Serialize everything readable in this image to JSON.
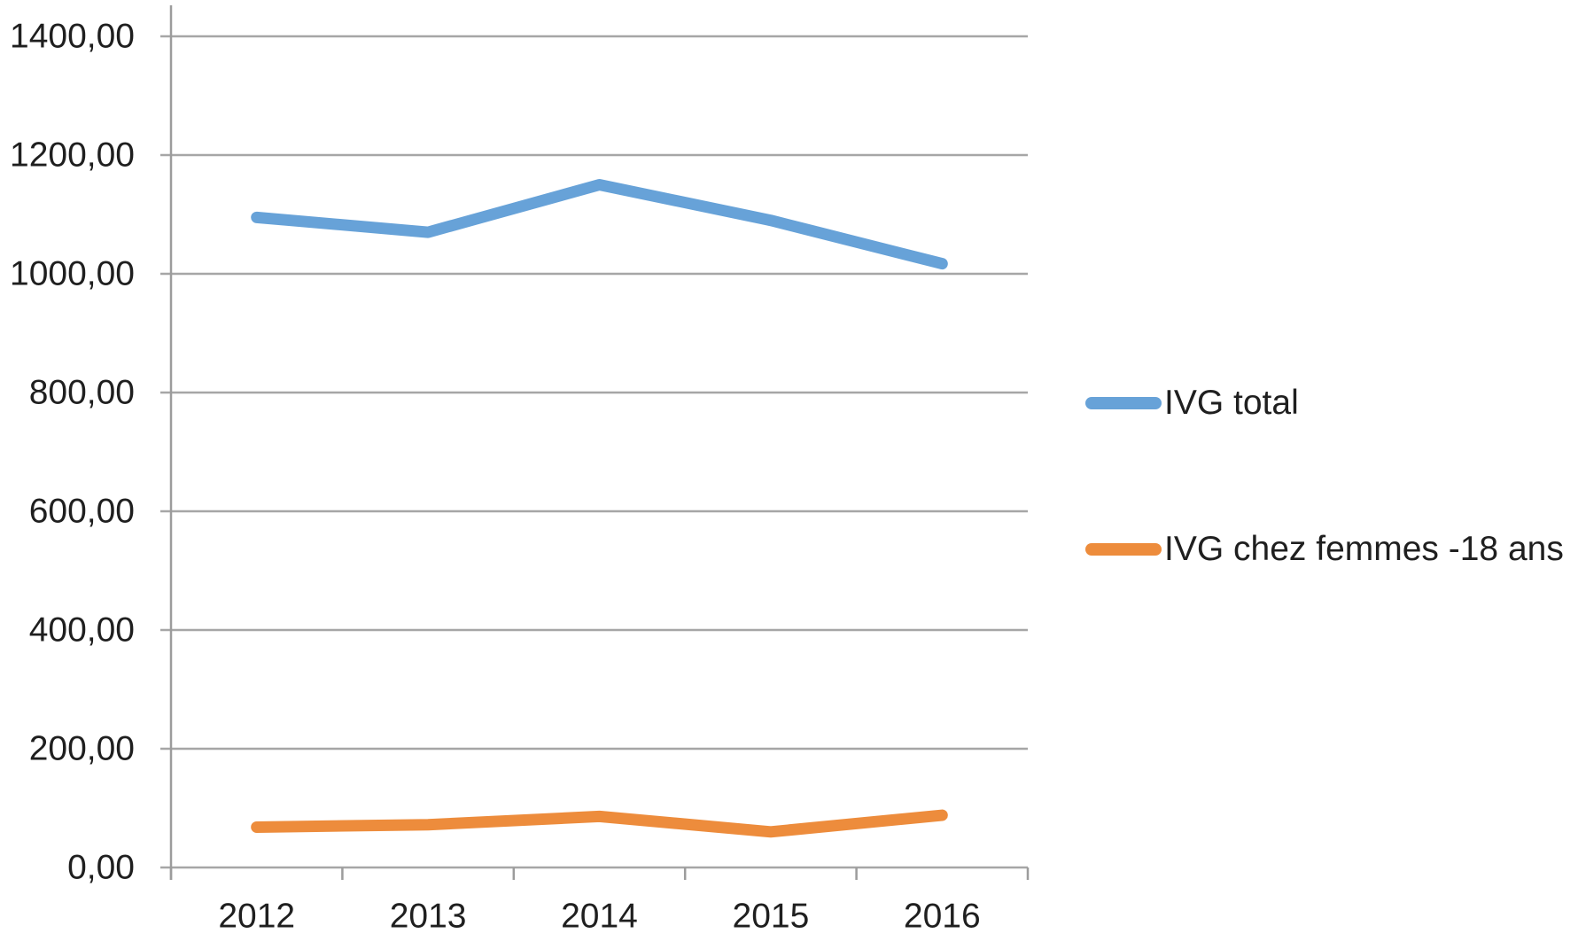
{
  "chart_data": {
    "type": "line",
    "title": "",
    "categories": [
      "2012",
      "2013",
      "2014",
      "2015",
      "2016"
    ],
    "series": [
      {
        "name": "IVG total",
        "color": "#67A2D8",
        "values": [
          1095,
          1070,
          1150,
          1090,
          1017
        ]
      },
      {
        "name": "IVG chez femmes -18 ans",
        "color": "#ED8C3C",
        "values": [
          68,
          72,
          86,
          60,
          88
        ]
      }
    ],
    "ylim": [
      0,
      1400
    ],
    "ytick_step": 200,
    "ytick_labels": [
      "0,00",
      "200,00",
      "400,00",
      "600,00",
      "800,00",
      "1000,00",
      "1200,00",
      "1400,00"
    ],
    "ytick_decimal_separator": ",",
    "grid": true,
    "legend_position": "right"
  },
  "colors": {
    "background": "#FFFFFF",
    "gridline": "#A6A6A6",
    "axis": "#9C9C9C",
    "tick": "#9C9C9C",
    "text": "#1F1F1F",
    "series_blue": "#67A2D8",
    "series_orange": "#ED8C3C"
  }
}
